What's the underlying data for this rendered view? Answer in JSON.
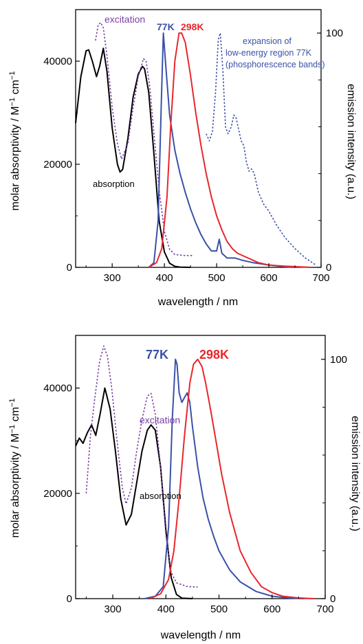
{
  "chart_data": [
    {
      "type": "line",
      "xlabel": "wavelength / nm",
      "ylabel": "molar absorptivity / M",
      "ylabel_sup": "−1",
      "ylabel_unit": " cm",
      "ylabel_sup2": "−1",
      "y2label": "emission intensity (a.u.)",
      "xlim": [
        230,
        700
      ],
      "ylim": [
        0,
        50000
      ],
      "y2lim": [
        0,
        110
      ],
      "x_ticks": [
        300,
        400,
        500,
        600,
        700
      ],
      "y_ticks": [
        0,
        20000,
        40000
      ],
      "y2_ticks": [
        0,
        100
      ],
      "annotations": {
        "excitation": "excitation",
        "k77": "77K",
        "k298": "298K",
        "absorption": "absorption",
        "expansion_1": "expansion of",
        "expansion_2": "low-energy region 77K",
        "expansion_3": "(phosphorescence bands)"
      },
      "series": [
        {
          "key": "absorption",
          "axis": "left",
          "color": "#000000",
          "dash": false,
          "x": [
            230,
            240,
            250,
            255,
            262,
            270,
            276,
            283,
            290,
            300,
            310,
            315,
            320,
            330,
            340,
            350,
            358,
            362,
            370,
            380,
            390,
            400,
            410,
            420,
            430,
            450
          ],
          "y": [
            28000,
            37000,
            42000,
            42200,
            40000,
            37000,
            39000,
            42500,
            38000,
            27000,
            20000,
            18500,
            19000,
            25000,
            33000,
            37500,
            39000,
            38500,
            34000,
            22000,
            9000,
            3000,
            800,
            200,
            50,
            0
          ]
        },
        {
          "key": "excitation",
          "axis": "left",
          "color": "#7a3fa6",
          "dash": true,
          "x": [
            268,
            273,
            278,
            283,
            290,
            300,
            310,
            318,
            330,
            340,
            350,
            360,
            365,
            372,
            380,
            390,
            400,
            410,
            420,
            440,
            455
          ],
          "y": [
            44000,
            47000,
            47500,
            46500,
            41000,
            31000,
            24000,
            21000,
            24000,
            31000,
            37000,
            40500,
            40000,
            35000,
            26000,
            15000,
            7000,
            3500,
            2500,
            2300,
            2300
          ]
        },
        {
          "key": "em77",
          "axis": "right",
          "color": "#3a50a8",
          "dash": false,
          "x": [
            370,
            380,
            388,
            394,
            398,
            403,
            410,
            420,
            430,
            440,
            450,
            460,
            470,
            480,
            490,
            500,
            505,
            510,
            520,
            535,
            550,
            570,
            600,
            630,
            650
          ],
          "y": [
            0,
            2,
            20,
            70,
            100,
            85,
            65,
            50,
            40,
            32,
            25,
            19,
            14,
            10,
            7,
            7,
            12,
            6,
            4,
            4,
            3,
            2,
            1,
            0.3,
            0
          ]
        },
        {
          "key": "em298",
          "axis": "right",
          "color": "#e8262b",
          "dash": false,
          "x": [
            370,
            385,
            395,
            405,
            412,
            420,
            428,
            433,
            440,
            450,
            460,
            470,
            480,
            490,
            500,
            510,
            520,
            530,
            540,
            560,
            580,
            600,
            630,
            660,
            680
          ],
          "y": [
            0,
            2,
            8,
            30,
            60,
            88,
            100,
            100,
            96,
            82,
            66,
            52,
            40,
            30,
            22,
            16,
            11,
            8,
            6,
            4,
            2,
            1,
            0.5,
            0.2,
            0
          ]
        },
        {
          "key": "expansion",
          "axis": "right",
          "color": "#3a50a8",
          "dash": true,
          "x": [
            480,
            486,
            492,
            498,
            503,
            507,
            512,
            517,
            522,
            528,
            533,
            537,
            542,
            547,
            552,
            557,
            562,
            567,
            572,
            580,
            590,
            600,
            615,
            630,
            650,
            670,
            690
          ],
          "y": [
            57,
            54,
            58,
            75,
            97,
            100,
            84,
            60,
            57,
            60,
            65,
            64,
            59,
            54,
            52,
            45,
            41,
            42,
            40,
            32,
            27,
            24,
            18,
            13,
            8,
            4,
            1
          ]
        }
      ]
    },
    {
      "type": "line",
      "xlabel": "wavelength / nm",
      "ylabel": "molar absorptivity / M",
      "ylabel_sup": "−1",
      "ylabel_unit": " cm",
      "ylabel_sup2": "−1",
      "y2label": "emission intensity (a.u.)",
      "xlim": [
        230,
        700
      ],
      "ylim": [
        0,
        50000
      ],
      "y2lim": [
        0,
        110
      ],
      "x_ticks": [
        300,
        400,
        500,
        600,
        700
      ],
      "y_ticks": [
        0,
        20000,
        40000
      ],
      "y2_ticks": [
        0,
        100
      ],
      "annotations": {
        "excitation": "excitation",
        "k77": "77K",
        "k298": "298K",
        "absorption": "absorption"
      },
      "series": [
        {
          "key": "absorption",
          "axis": "left",
          "color": "#000000",
          "dash": false,
          "x": [
            230,
            237,
            244,
            252,
            260,
            268,
            276,
            285,
            295,
            305,
            315,
            325,
            335,
            345,
            355,
            365,
            372,
            380,
            390,
            400,
            410,
            420,
            430,
            450
          ],
          "y": [
            29000,
            30500,
            29500,
            31500,
            33000,
            31000,
            35000,
            40000,
            36000,
            28000,
            19000,
            14000,
            16000,
            22000,
            28000,
            32000,
            33000,
            32000,
            25000,
            13000,
            4000,
            800,
            100,
            0
          ]
        },
        {
          "key": "excitation",
          "axis": "left",
          "color": "#7a3fa6",
          "dash": true,
          "x": [
            250,
            258,
            266,
            275,
            283,
            290,
            298,
            308,
            318,
            325,
            335,
            345,
            355,
            365,
            372,
            380,
            390,
            400,
            410,
            420,
            440,
            460
          ],
          "y": [
            20000,
            31000,
            38000,
            45000,
            48000,
            46000,
            40000,
            30000,
            21000,
            18000,
            21000,
            28000,
            34000,
            38500,
            39000,
            35000,
            25000,
            12000,
            5000,
            3000,
            2300,
            2200
          ]
        },
        {
          "key": "em77",
          "axis": "right",
          "color": "#3a50a8",
          "dash": false,
          "x": [
            360,
            380,
            395,
            405,
            412,
            418,
            421,
            425,
            430,
            435,
            440,
            445,
            450,
            460,
            470,
            480,
            490,
            500,
            520,
            540,
            570,
            600,
            630,
            660
          ],
          "y": [
            0,
            1,
            5,
            30,
            75,
            100,
            98,
            86,
            82,
            84,
            86,
            82,
            72,
            55,
            42,
            33,
            26,
            20,
            12,
            7,
            3,
            1,
            0.3,
            0
          ]
        },
        {
          "key": "em298",
          "axis": "right",
          "color": "#e8262b",
          "dash": false,
          "x": [
            370,
            390,
            405,
            415,
            425,
            435,
            445,
            452,
            460,
            468,
            475,
            485,
            495,
            505,
            520,
            540,
            560,
            580,
            600,
            620,
            650,
            680
          ],
          "y": [
            0,
            2,
            8,
            20,
            42,
            68,
            90,
            98,
            100,
            97,
            90,
            78,
            65,
            52,
            36,
            20,
            11,
            5,
            2.5,
            1,
            0.3,
            0
          ]
        }
      ]
    }
  ]
}
